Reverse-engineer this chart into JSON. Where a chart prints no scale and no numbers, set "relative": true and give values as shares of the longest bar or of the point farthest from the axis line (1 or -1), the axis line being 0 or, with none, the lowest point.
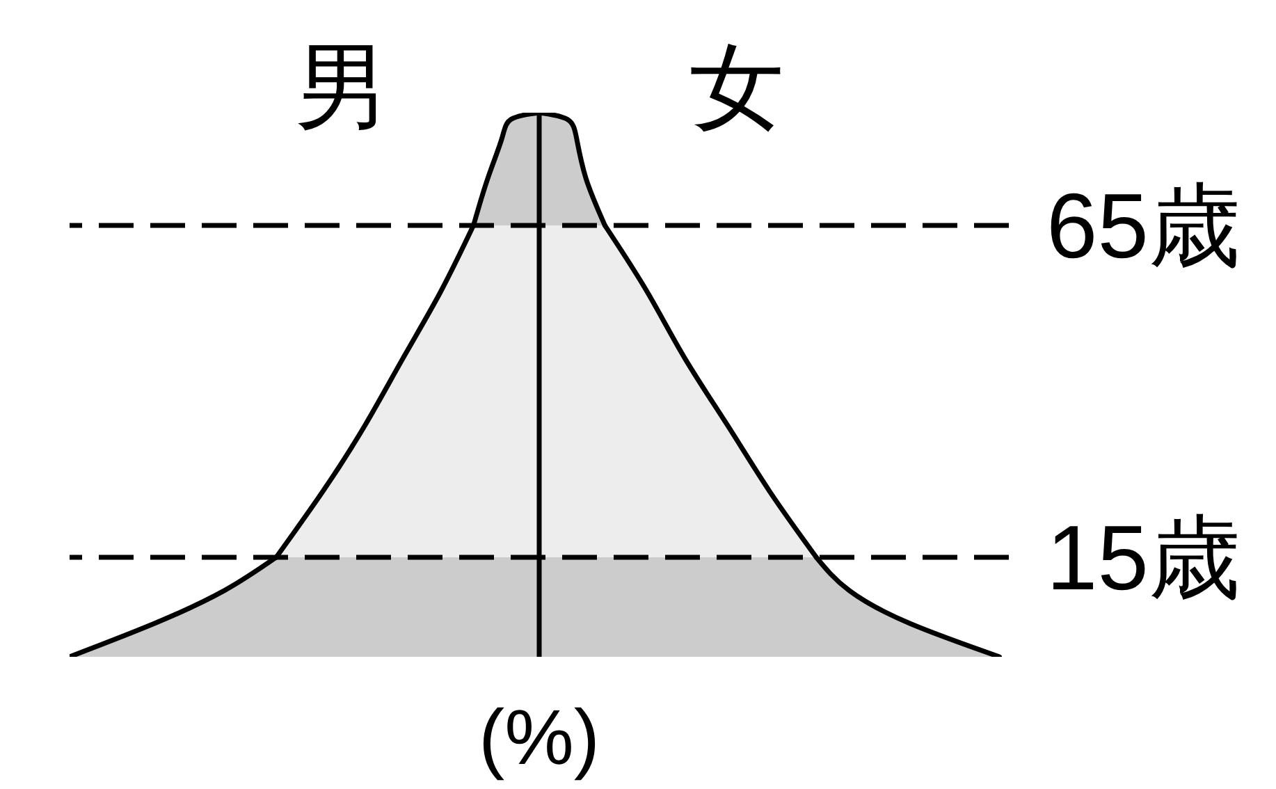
{
  "chart_data": {
    "type": "area",
    "orientation": "horizontal",
    "relative": true,
    "xlabel": "(%)",
    "annotations": [
      "男",
      "女"
    ],
    "ylim": [
      0,
      82
    ],
    "yticks": [
      {
        "value": 15,
        "label": "15歳"
      },
      {
        "value": 65,
        "label": "65歳"
      }
    ],
    "tick_labels": "y",
    "series": [
      {
        "color": "#cccccc",
        "x": [
          0,
          5,
          10,
          15
        ],
        "values": [
          -1,
          -0.82,
          -0.67,
          -0.56
        ]
      },
      {
        "color": "#ededed",
        "x": [
          15,
          25,
          35,
          45,
          55,
          65
        ],
        "values": [
          -0.56,
          -0.46,
          -0.37,
          -0.29,
          -0.21,
          -0.14
        ]
      },
      {
        "color": "#cccccc",
        "x": [
          65,
          72,
          78,
          81,
          82
        ],
        "values": [
          -0.14,
          -0.11,
          -0.08,
          -0.06,
          0
        ]
      },
      {
        "color": "#cccccc",
        "x": [
          0,
          5,
          10,
          15
        ],
        "values": [
          0.98,
          0.79,
          0.66,
          0.59
        ]
      },
      {
        "color": "#ededed",
        "x": [
          15,
          25,
          35,
          45,
          55,
          65
        ],
        "values": [
          0.59,
          0.49,
          0.4,
          0.31,
          0.23,
          0.14
        ]
      },
      {
        "color": "#cccccc",
        "x": [
          65,
          72,
          78,
          81,
          82
        ],
        "values": [
          0.14,
          0.1,
          0.08,
          0.06,
          0
        ]
      }
    ],
    "ref_lines": [
      {
        "axis": "y",
        "value": 65,
        "color": "#000000",
        "line_style": "dashed"
      },
      {
        "axis": "y",
        "value": 15,
        "color": "#000000",
        "line_style": "dashed"
      }
    ]
  }
}
